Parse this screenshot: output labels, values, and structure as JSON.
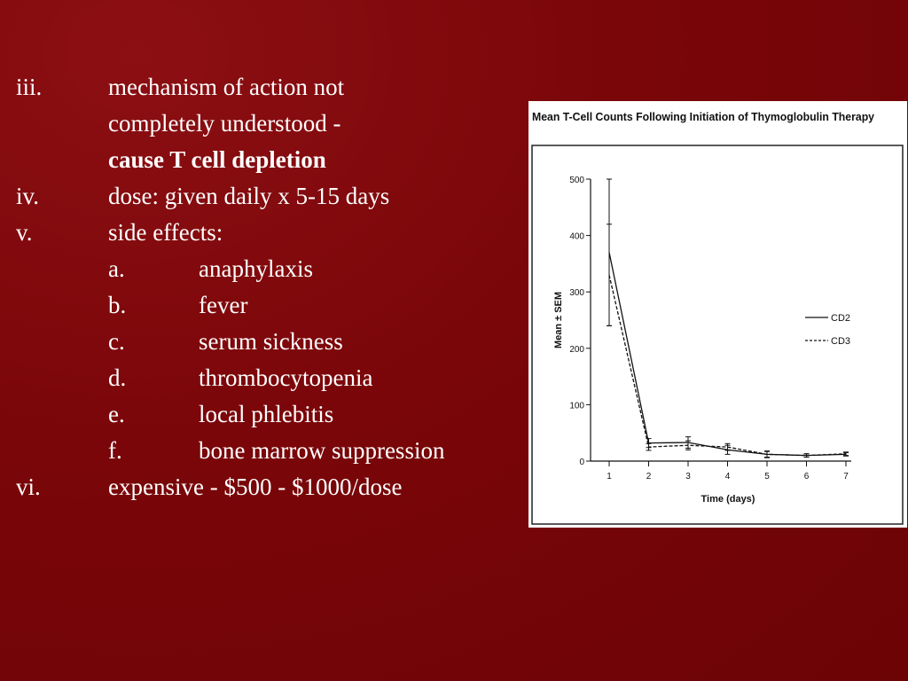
{
  "outline": {
    "item_iii": {
      "marker": "iii.",
      "line1": "mechanism of action not",
      "line2": "completely understood -",
      "line3": "cause T cell depletion"
    },
    "item_iv": {
      "marker": "iv.",
      "text": "dose:  given daily x 5-15 days"
    },
    "item_v": {
      "marker": "v.",
      "text": "side effects:",
      "subitems": [
        {
          "marker": "a.",
          "text": "anaphylaxis"
        },
        {
          "marker": "b.",
          "text": "fever"
        },
        {
          "marker": "c.",
          "text": "serum sickness"
        },
        {
          "marker": "d.",
          "text": "thrombocytopenia"
        },
        {
          "marker": "e.",
          "text": "local phlebitis"
        },
        {
          "marker": "f.",
          "text": "bone marrow suppression"
        }
      ]
    },
    "item_vi": {
      "marker": "vi.",
      "text": "expensive - $500 - $1000/dose"
    }
  },
  "colors": {
    "background": "#780508",
    "text": "#ffffff",
    "figure_bg": "#ffffff",
    "ink": "#111111"
  },
  "chart_data": {
    "type": "line",
    "title": "Mean T-Cell Counts Following Initiation of Thymoglobulin Therapy",
    "xlabel": "Time (days)",
    "ylabel": "Mean ± SEM",
    "x": [
      1,
      2,
      3,
      4,
      5,
      6,
      7
    ],
    "x_ticks": [
      "1",
      "2",
      "3",
      "4",
      "5",
      "6",
      "7"
    ],
    "y_ticks": [
      "0",
      "100",
      "200",
      "300",
      "400",
      "500"
    ],
    "ylim": [
      0,
      500
    ],
    "legend_position": "right",
    "series": [
      {
        "name": "CD2",
        "style": "solid",
        "values": [
          370,
          32,
          33,
          20,
          12,
          10,
          12
        ],
        "error": [
          130,
          8,
          10,
          8,
          6,
          3,
          3
        ]
      },
      {
        "name": "CD3",
        "style": "dashed",
        "values": [
          330,
          25,
          28,
          25,
          12,
          10,
          13
        ],
        "error": [
          90,
          6,
          8,
          6,
          5,
          3,
          3
        ]
      }
    ]
  }
}
